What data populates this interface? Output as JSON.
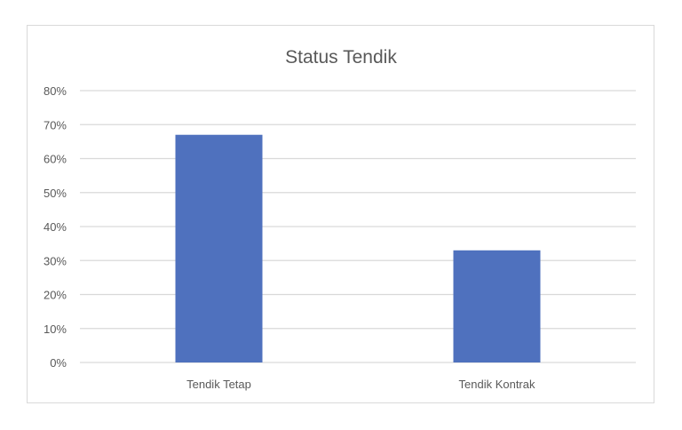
{
  "chart_data": {
    "type": "bar",
    "title": "Status Tendik",
    "categories": [
      "Tendik Tetap",
      "Tendik Kontrak"
    ],
    "values": [
      67,
      33
    ],
    "value_unit": "%",
    "xlabel": "",
    "ylabel": "",
    "ylim": [
      0,
      80
    ],
    "yticks": [
      "0%",
      "10%",
      "20%",
      "30%",
      "40%",
      "50%",
      "60%",
      "70%",
      "80%"
    ],
    "grid": true,
    "legend": "none",
    "bar_color": "#4f71be",
    "grid_color": "#d9d9d9"
  }
}
